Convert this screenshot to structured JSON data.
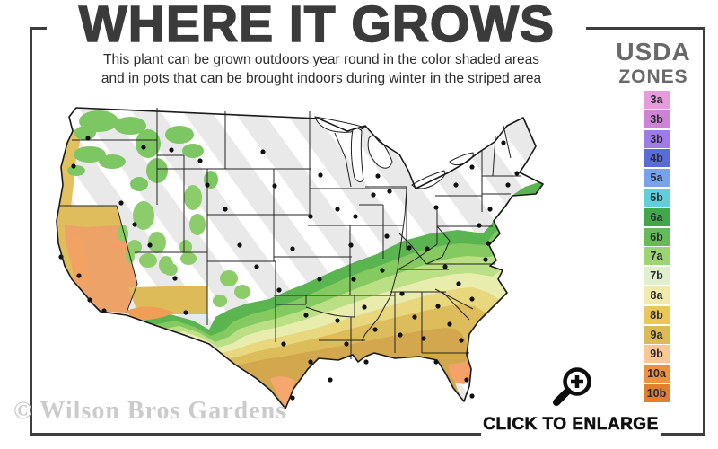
{
  "title": "WHERE IT GROWS",
  "subtitle": {
    "line1": "This plant can be grown outdoors year round in the color shaded areas",
    "line2": "and in pots that can be brought indoors during winter in the striped area"
  },
  "legend": {
    "title_line1": "USDA",
    "title_line2": "ZONES",
    "zones": [
      {
        "label": "3a",
        "color": "#e79bda"
      },
      {
        "label": "3b",
        "color": "#cd84d6"
      },
      {
        "label": "3b",
        "color": "#9d7ce9"
      },
      {
        "label": "4b",
        "color": "#5a6cd9"
      },
      {
        "label": "5a",
        "color": "#77a2ec"
      },
      {
        "label": "5b",
        "color": "#5fcedd"
      },
      {
        "label": "6a",
        "color": "#42a64a"
      },
      {
        "label": "6b",
        "color": "#65bb57"
      },
      {
        "label": "7a",
        "color": "#9ed573"
      },
      {
        "label": "7b",
        "color": "#e0f0cc"
      },
      {
        "label": "8a",
        "color": "#f2e9ad"
      },
      {
        "label": "8b",
        "color": "#eac75a"
      },
      {
        "label": "9a",
        "color": "#dcba55"
      },
      {
        "label": "9b",
        "color": "#f7c795"
      },
      {
        "label": "10a",
        "color": "#f0913d"
      },
      {
        "label": "10b",
        "color": "#e07f2c"
      }
    ]
  },
  "enlarge": {
    "label": "CLICK TO ENLARGE",
    "icon": "magnifier-plus-icon"
  },
  "watermark": "© Wilson Bros Gardens",
  "map": {
    "striped_area_fill": "#e9e9e9",
    "frame_color": "#3d3d3d",
    "title_color": "#3b3b3b"
  }
}
